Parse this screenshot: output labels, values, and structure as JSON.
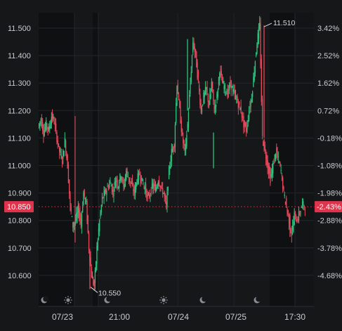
{
  "chart_data": {
    "type": "candlestick",
    "ylim": [
      10.52,
      11.54
    ],
    "y_ticks": [
      "11.500",
      "11.400",
      "11.300",
      "11.200",
      "11.100",
      "11.000",
      "10.900",
      "10.800",
      "10.700",
      "10.600"
    ],
    "y_tick_values": [
      11.5,
      11.4,
      11.3,
      11.2,
      11.1,
      11.0,
      10.9,
      10.8,
      10.7,
      10.6
    ],
    "pct_ticks": [
      "3.42%",
      "2.52%",
      "1.62%",
      "0.72%",
      "-0.18%",
      "-1.08%",
      "-1.98%",
      "-2.88%",
      "-3.78%",
      "-4.68%"
    ],
    "x_ticks": [
      "07/23",
      "21:00",
      "07/24",
      "07/25",
      "17:30"
    ],
    "current_price": {
      "label": "10.850",
      "value": 10.85,
      "pct_label": "-2.43%"
    },
    "annotations": {
      "high": {
        "label": "10.550",
        "value": 10.55,
        "note": "low"
      },
      "max": {
        "label": "11.510",
        "value": 11.51
      }
    },
    "session_icons": [
      "moon-icon",
      "sun-icon",
      "moon-icon",
      "sun-icon",
      "moon-icon",
      "moon-icon"
    ],
    "colors": {
      "up": "#2ec27e",
      "down": "#e8485c",
      "background": "#161719",
      "night_band": "#0f1012",
      "grid": "#24262b",
      "badge": "#e0344c"
    },
    "price_path": [
      11.14,
      11.17,
      11.12,
      11.15,
      11.13,
      11.18,
      11.16,
      11.1,
      11.05,
      11.02,
      11.09,
      11.0,
      10.85,
      10.78,
      10.8,
      10.84,
      10.79,
      10.9,
      10.86,
      10.7,
      10.6,
      10.56,
      10.7,
      10.8,
      10.88,
      10.9,
      10.92,
      10.94,
      10.9,
      10.95,
      10.93,
      10.97,
      10.92,
      10.98,
      10.95,
      10.93,
      10.9,
      10.95,
      10.97,
      10.94,
      10.92,
      10.88,
      10.9,
      10.93,
      10.91,
      10.95,
      10.92,
      10.9,
      10.85,
      10.98,
      11.05,
      11.08,
      11.3,
      11.2,
      11.1,
      11.05,
      11.15,
      11.3,
      11.45,
      11.4,
      11.3,
      11.2,
      11.25,
      11.28,
      11.22,
      11.3,
      11.2,
      11.25,
      11.35,
      11.3,
      11.28,
      11.26,
      11.3,
      11.27,
      11.25,
      11.22,
      11.2,
      11.15,
      11.13,
      11.2,
      11.25,
      11.35,
      11.45,
      11.51,
      11.1,
      11.05,
      11.0,
      10.95,
      11.0,
      11.05,
      11.02,
      10.98,
      10.9,
      10.85,
      10.8,
      10.75,
      10.82,
      10.8,
      10.83,
      10.86,
      10.85
    ]
  }
}
